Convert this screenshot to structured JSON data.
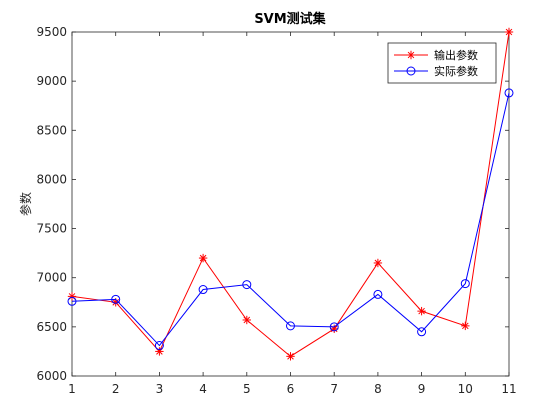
{
  "chart_data": {
    "type": "line",
    "title": "SVM测试集",
    "xlabel": "",
    "ylabel": "参数",
    "x": [
      1,
      2,
      3,
      4,
      5,
      6,
      7,
      8,
      9,
      10,
      11
    ],
    "xlim": [
      1,
      11
    ],
    "ylim": [
      6000,
      9500
    ],
    "yticks": [
      6000,
      6500,
      7000,
      7500,
      8000,
      8500,
      9000,
      9500
    ],
    "grid": false,
    "legend_position": "top-right",
    "series": [
      {
        "name": "输出参数",
        "color": "#ff0000",
        "marker": "asterisk",
        "values": [
          6810,
          6750,
          6250,
          7200,
          6570,
          6200,
          6480,
          7150,
          6660,
          6510,
          9500
        ]
      },
      {
        "name": "实际参数",
        "color": "#0000ff",
        "marker": "circle",
        "values": [
          6760,
          6780,
          6310,
          6880,
          6930,
          6510,
          6500,
          6830,
          6450,
          6940,
          8880
        ]
      }
    ]
  }
}
